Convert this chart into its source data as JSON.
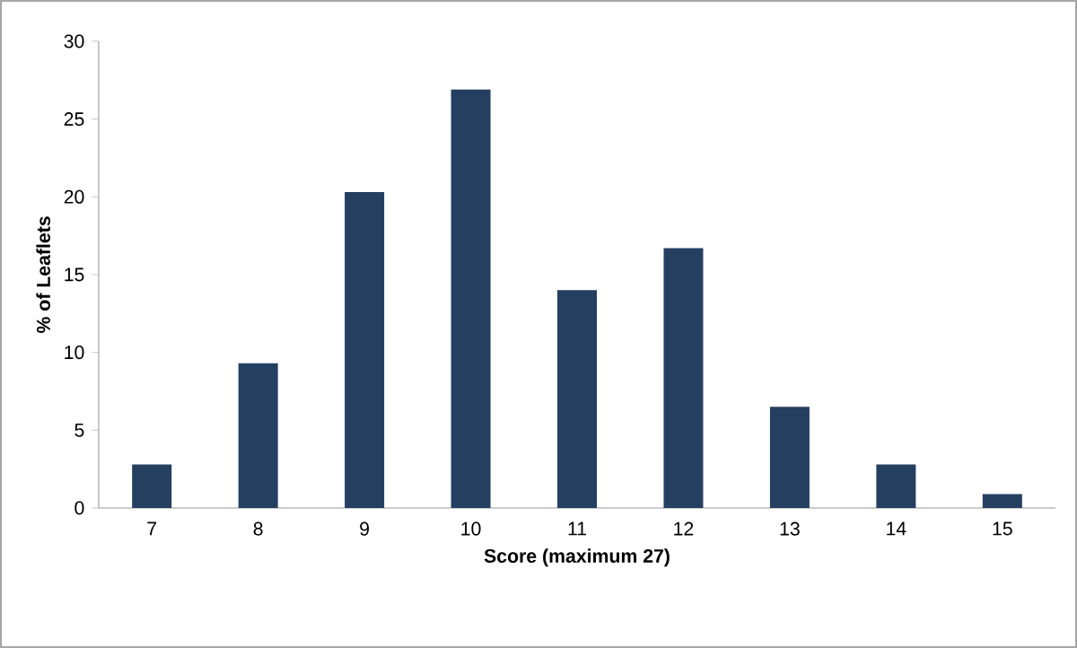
{
  "chart_data": {
    "type": "bar",
    "xlabel": "Score (maximum 27)",
    "ylabel": "% of Leaflets",
    "categories": [
      "7",
      "8",
      "9",
      "10",
      "11",
      "12",
      "13",
      "14",
      "15"
    ],
    "values": [
      2.8,
      9.3,
      20.3,
      26.9,
      14.0,
      16.7,
      6.5,
      2.8,
      0.9
    ],
    "color": "#243f60",
    "ylim": [
      0,
      30
    ],
    "yticks": [
      0,
      5,
      10,
      15,
      20,
      25,
      30
    ]
  }
}
